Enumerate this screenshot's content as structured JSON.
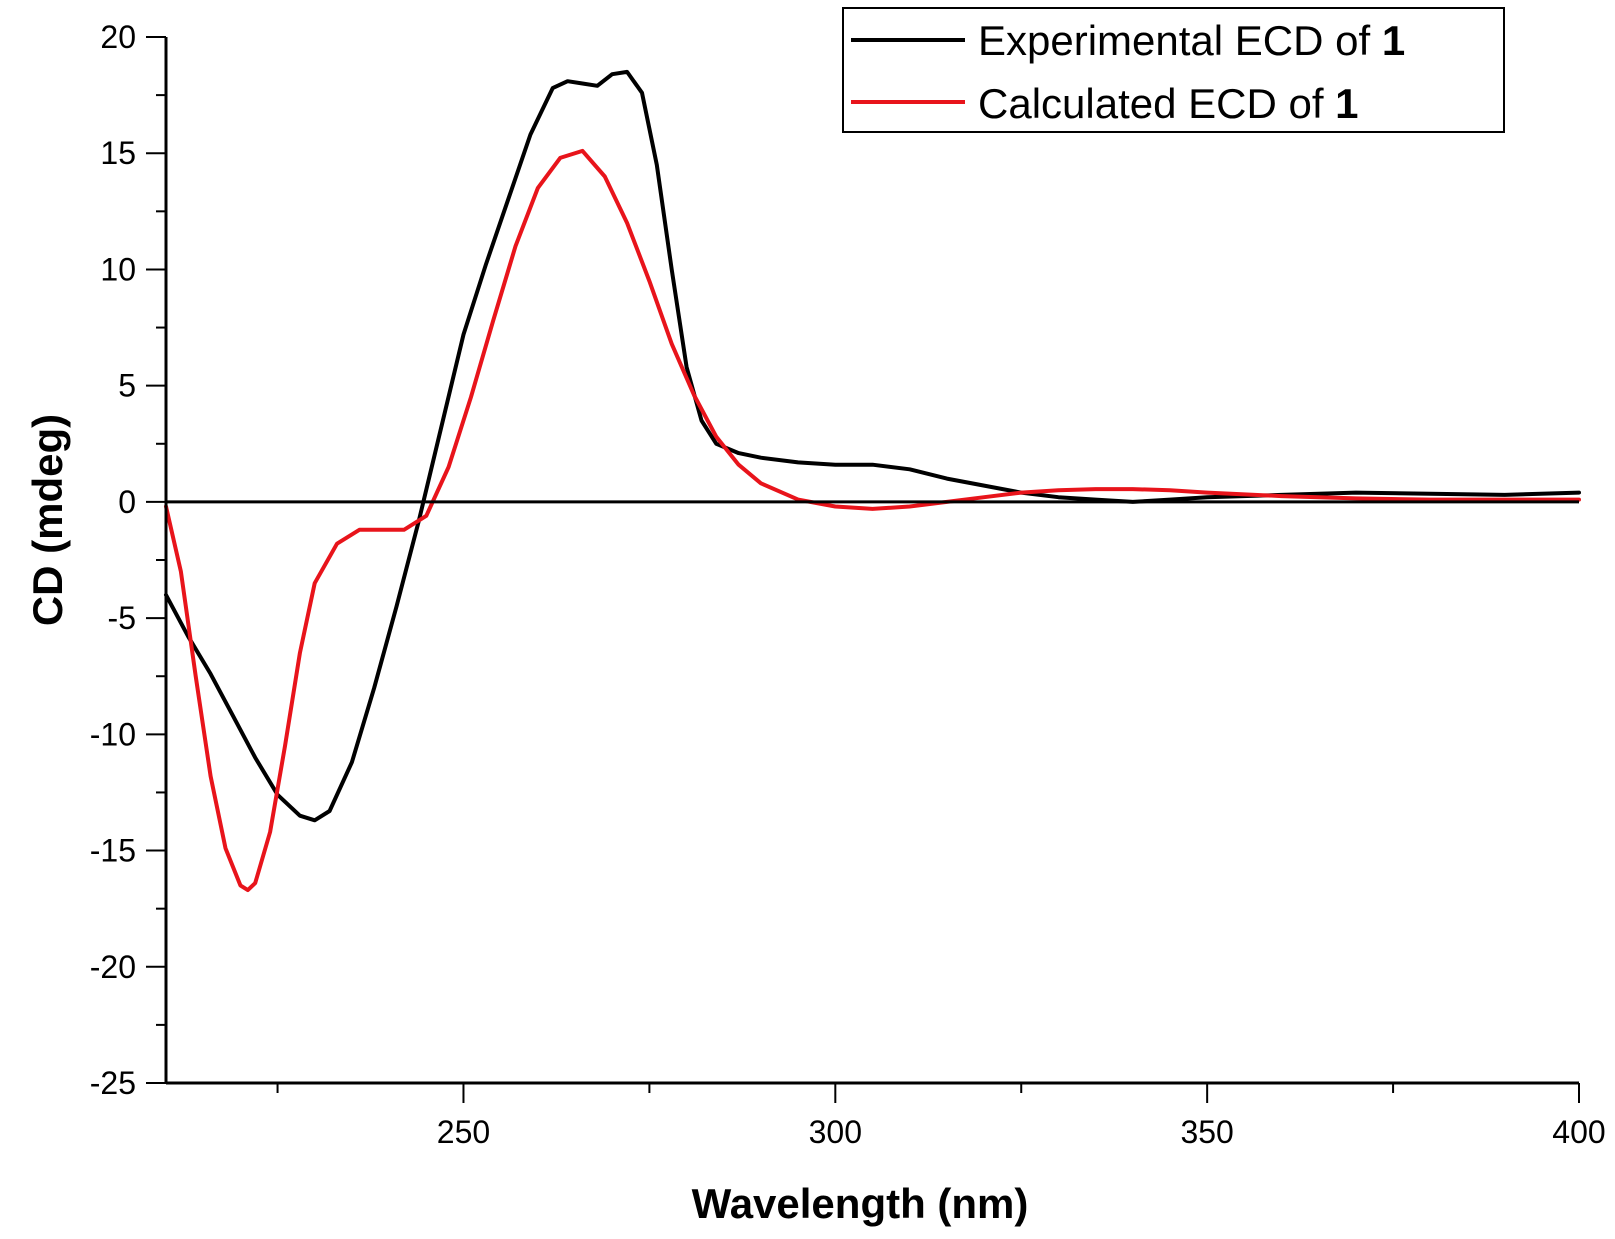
{
  "chart_data": {
    "type": "line",
    "title": "",
    "xlabel": "Wavelength (nm)",
    "ylabel": "CD (mdeg)",
    "xlim": [
      210,
      400
    ],
    "ylim": [
      -25,
      20
    ],
    "x_ticks": [
      250,
      300,
      350,
      400
    ],
    "y_ticks": [
      -25,
      -20,
      -15,
      -10,
      -5,
      0,
      5,
      10,
      15,
      20
    ],
    "grid": false,
    "legend_position": "top-right",
    "zero_line": 0,
    "series": [
      {
        "name": "Experimental ECD of",
        "name_suffix": "1",
        "color": "#000000",
        "x": [
          210,
          213,
          216,
          219,
          222,
          225,
          228,
          230,
          232,
          235,
          238,
          241,
          244,
          247,
          250,
          253,
          256,
          259,
          262,
          264,
          266,
          268,
          270,
          272,
          274,
          276,
          278,
          280,
          282,
          284,
          287,
          290,
          295,
          300,
          305,
          310,
          315,
          320,
          325,
          330,
          335,
          340,
          345,
          350,
          360,
          370,
          380,
          390,
          400
        ],
        "y": [
          -4.0,
          -5.8,
          -7.4,
          -9.2,
          -11.0,
          -12.6,
          -13.5,
          -13.7,
          -13.3,
          -11.2,
          -8.0,
          -4.5,
          -0.8,
          3.2,
          7.2,
          10.2,
          13.0,
          15.8,
          17.8,
          18.1,
          18.0,
          17.9,
          18.4,
          18.5,
          17.6,
          14.5,
          10.0,
          5.8,
          3.5,
          2.5,
          2.1,
          1.9,
          1.7,
          1.6,
          1.6,
          1.4,
          1.0,
          0.7,
          0.4,
          0.2,
          0.1,
          0.0,
          0.1,
          0.2,
          0.3,
          0.4,
          0.35,
          0.3,
          0.4
        ]
      },
      {
        "name": "Calculated ECD of",
        "name_suffix": "1",
        "color": "#e8141b",
        "x": [
          210,
          212,
          214,
          216,
          218,
          220,
          221,
          222,
          224,
          226,
          228,
          230,
          233,
          236,
          239,
          242,
          245,
          248,
          251,
          254,
          257,
          260,
          263,
          266,
          269,
          272,
          275,
          278,
          281,
          284,
          287,
          290,
          295,
          300,
          305,
          310,
          315,
          320,
          325,
          330,
          335,
          340,
          345,
          350,
          360,
          370,
          380,
          390,
          400
        ],
        "y": [
          -0.2,
          -3.0,
          -7.5,
          -11.8,
          -14.9,
          -16.5,
          -16.7,
          -16.4,
          -14.2,
          -10.5,
          -6.5,
          -3.5,
          -1.8,
          -1.2,
          -1.2,
          -1.2,
          -0.6,
          1.5,
          4.5,
          7.8,
          11.0,
          13.5,
          14.8,
          15.1,
          14.0,
          12.0,
          9.5,
          6.8,
          4.6,
          2.8,
          1.6,
          0.8,
          0.1,
          -0.2,
          -0.3,
          -0.2,
          0.0,
          0.2,
          0.4,
          0.5,
          0.55,
          0.55,
          0.5,
          0.4,
          0.25,
          0.15,
          0.1,
          0.1,
          0.1
        ]
      }
    ]
  }
}
